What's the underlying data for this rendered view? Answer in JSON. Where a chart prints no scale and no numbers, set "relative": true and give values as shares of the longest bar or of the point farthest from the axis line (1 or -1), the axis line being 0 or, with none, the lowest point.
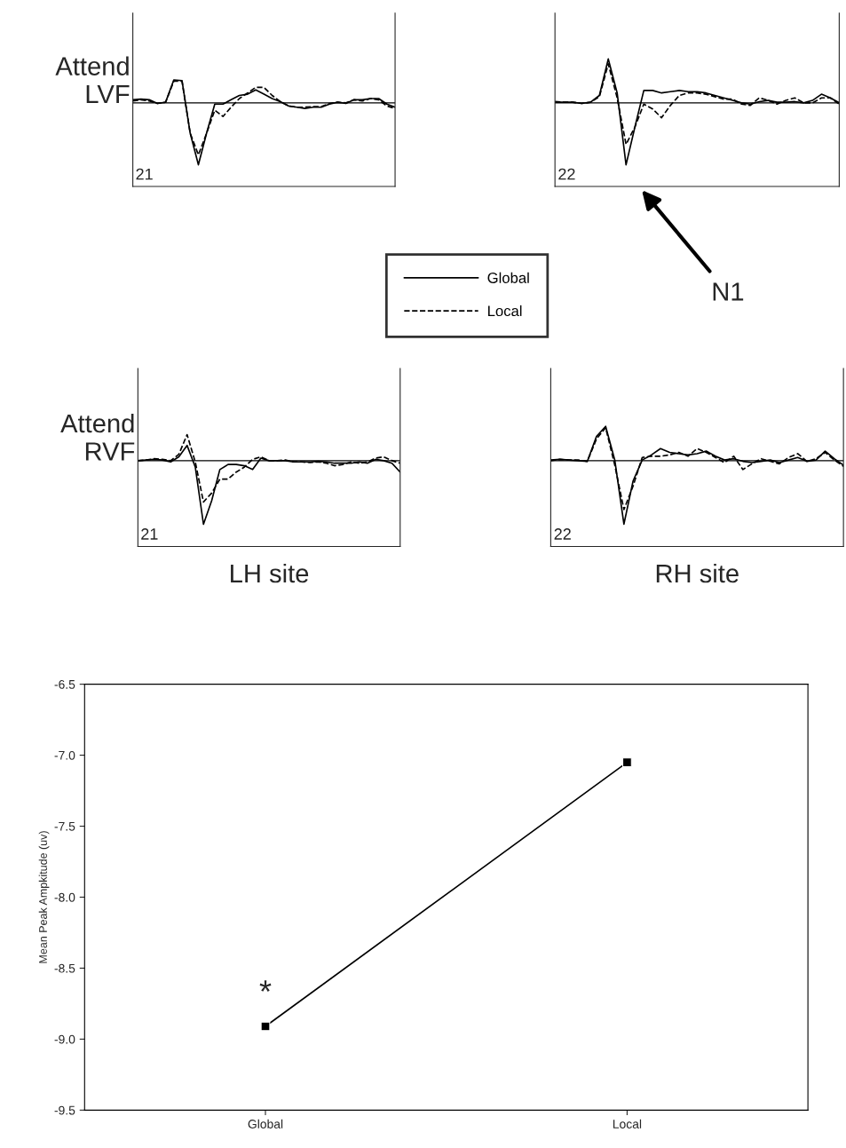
{
  "chart_data": [
    {
      "type": "line",
      "relative": true,
      "ylabel": "Attend\nLVF",
      "categories": [
        null,
        null,
        null,
        null,
        null,
        null,
        null,
        null,
        null,
        null,
        null,
        null,
        null,
        null,
        null,
        null,
        null,
        null,
        null,
        null,
        null,
        null,
        null,
        null,
        null,
        null,
        null,
        null,
        null,
        null,
        null,
        null,
        null
      ],
      "annotations": [
        "21"
      ],
      "series": [
        {
          "color": "#000000",
          "line_style": "solid",
          "values": [
            0.05,
            0.06,
            0.05,
            -0.01,
            0.01,
            0.37,
            0.36,
            -0.49,
            -1,
            -0.49,
            -0.02,
            -0.02,
            0.05,
            0.12,
            0.14,
            0.21,
            0.14,
            0.07,
            0.02,
            -0.05,
            -0.07,
            -0.09,
            -0.07,
            -0.07,
            -0.02,
            0.01,
            -0.01,
            0.05,
            0.05,
            0.07,
            0.07,
            -0.02,
            -0.07
          ]
        },
        {
          "color": "#000000",
          "line_style": "dashed",
          "values": [
            0.03,
            0.05,
            0.03,
            -0.01,
            0.01,
            0.35,
            0.35,
            -0.49,
            -0.84,
            -0.49,
            -0.12,
            -0.22,
            -0.07,
            0.07,
            0.16,
            0.25,
            0.25,
            0.12,
            0.02,
            -0.05,
            -0.07,
            -0.07,
            -0.06,
            -0.06,
            -0.01,
            0.01,
            0,
            0.05,
            0.03,
            0.07,
            0.05,
            -0.05,
            -0.09
          ]
        }
      ]
    },
    {
      "type": "line",
      "relative": true,
      "legend": "bottom left",
      "categories": [
        null,
        null,
        null,
        null,
        null,
        null,
        null,
        null,
        null,
        null,
        null,
        null,
        null,
        null,
        null,
        null,
        null,
        null,
        null,
        null,
        null,
        null,
        null,
        null,
        null,
        null,
        null,
        null,
        null,
        null,
        null,
        null,
        null
      ],
      "annotations": [
        "22",
        "N1"
      ],
      "series": [
        {
          "name": "Global",
          "color": "#000000",
          "line_style": "solid",
          "values": [
            0.01,
            0.01,
            0.01,
            -0.01,
            0.01,
            0.12,
            0.71,
            0.16,
            -1,
            -0.39,
            0.2,
            0.2,
            0.16,
            0.18,
            0.2,
            0.18,
            0.18,
            0.16,
            0.12,
            0.08,
            0.04,
            0,
            -0.02,
            0.02,
            0.04,
            0.01,
            0.01,
            0.02,
            0,
            0.04,
            0.14,
            0.08,
            0
          ]
        },
        {
          "name": "Local",
          "color": "#000000",
          "line_style": "dashed",
          "values": [
            0.02,
            0.01,
            0.01,
            -0.01,
            0.01,
            0.1,
            0.63,
            0.08,
            -0.67,
            -0.39,
            -0.02,
            -0.1,
            -0.24,
            -0.04,
            0.12,
            0.16,
            0.16,
            0.14,
            0.1,
            0.06,
            0.06,
            -0.02,
            -0.04,
            0.08,
            0.04,
            -0.02,
            0.04,
            0.08,
            0,
            0,
            0.08,
            0.08,
            -0.02
          ]
        }
      ]
    },
    {
      "type": "line",
      "relative": true,
      "ylabel": "Attend\nRVF",
      "xlabel": "LH site",
      "categories": [
        null,
        null,
        null,
        null,
        null,
        null,
        null,
        null,
        null,
        null,
        null,
        null,
        null,
        null,
        null,
        null,
        null,
        null,
        null,
        null,
        null,
        null,
        null,
        null,
        null,
        null,
        null,
        null,
        null,
        null,
        null,
        null,
        null
      ],
      "annotations": [
        "21"
      ],
      "series": [
        {
          "color": "#000000",
          "line_style": "solid",
          "values": [
            0,
            0.01,
            0.02,
            0.01,
            -0.02,
            0.06,
            0.24,
            -0.1,
            -1,
            -0.63,
            -0.14,
            -0.06,
            -0.06,
            -0.08,
            -0.14,
            0.04,
            0,
            0,
            0,
            -0.02,
            -0.02,
            -0.02,
            -0.01,
            -0.02,
            -0.04,
            -0.04,
            -0.04,
            -0.02,
            -0.04,
            0.02,
            0,
            -0.04,
            -0.18
          ]
        },
        {
          "color": "#000000",
          "line_style": "dashed",
          "values": [
            0,
            0.01,
            0.03,
            0.02,
            0,
            0.1,
            0.41,
            -0.02,
            -0.65,
            -0.51,
            -0.29,
            -0.29,
            -0.18,
            -0.1,
            0.02,
            0.06,
            0,
            0,
            0.01,
            -0.02,
            -0.02,
            -0.03,
            -0.02,
            -0.04,
            -0.08,
            -0.06,
            -0.02,
            -0.04,
            -0.02,
            0.04,
            0.06,
            0,
            -0.04
          ]
        }
      ]
    },
    {
      "type": "line",
      "relative": true,
      "xlabel": "RH site",
      "categories": [
        null,
        null,
        null,
        null,
        null,
        null,
        null,
        null,
        null,
        null,
        null,
        null,
        null,
        null,
        null,
        null,
        null,
        null,
        null,
        null,
        null,
        null,
        null,
        null,
        null,
        null,
        null,
        null,
        null,
        null,
        null,
        null,
        null
      ],
      "annotations": [
        "22"
      ],
      "series": [
        {
          "color": "#000000",
          "line_style": "solid",
          "values": [
            0.01,
            0.02,
            0.01,
            0,
            -0.01,
            0.38,
            0.54,
            0.01,
            -1,
            -0.32,
            0.01,
            0.09,
            0.19,
            0.13,
            0.11,
            0.09,
            0.11,
            0.15,
            0.07,
            0.01,
            0.03,
            -0.01,
            -0.03,
            -0.01,
            0.01,
            -0.03,
            0.01,
            0.05,
            -0.01,
            0.01,
            0.15,
            0.03,
            -0.07
          ]
        },
        {
          "color": "#000000",
          "line_style": "dashed",
          "values": [
            0,
            0.02,
            0.01,
            0.01,
            -0.01,
            0.34,
            0.52,
            -0.07,
            -0.77,
            -0.4,
            0.05,
            0.07,
            0.07,
            0.09,
            0.13,
            0.07,
            0.19,
            0.13,
            0.05,
            -0.03,
            0.07,
            -0.14,
            -0.05,
            0.03,
            -0.01,
            -0.05,
            0.05,
            0.11,
            -0.01,
            0.03,
            0.13,
            0.01,
            -0.09
          ]
        }
      ]
    },
    {
      "type": "line",
      "ylabel": "Mean Peak Ampkitude (uv)",
      "categories": [
        "Global",
        "Local"
      ],
      "marker": "square",
      "ylim": [
        -9.5,
        -6.5
      ],
      "yticks": [
        {
          "value": -9.5,
          "label": "-9.5"
        },
        {
          "value": -9.0,
          "label": "-9.0"
        },
        {
          "value": -8.5,
          "label": "-8.5"
        },
        {
          "value": -8.0,
          "label": "-8.0"
        },
        {
          "value": -7.5,
          "label": "-7.5"
        },
        {
          "value": -7.0,
          "label": "-7.0"
        },
        {
          "value": -6.5,
          "label": "-6.5"
        }
      ],
      "annotations": [
        "*"
      ],
      "series": [
        {
          "color": "#000000",
          "values": [
            -8.91,
            -7.05
          ]
        }
      ]
    }
  ]
}
